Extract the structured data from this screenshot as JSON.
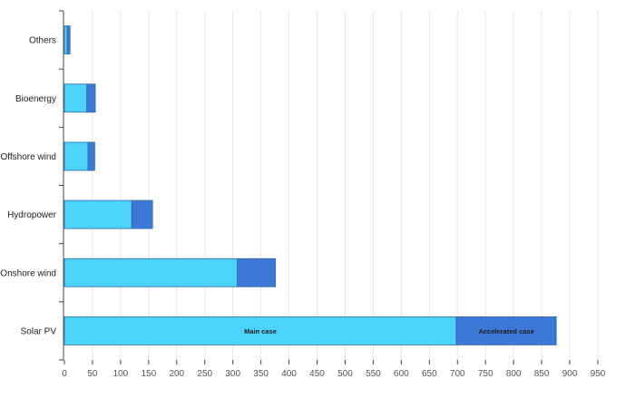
{
  "chart_data": {
    "type": "bar",
    "orientation": "horizontal",
    "stacked": true,
    "categories": [
      "Others",
      "Bioenergy",
      "Offshore wind",
      "Hydropower",
      "Onshore wind",
      "Solar PV"
    ],
    "series": [
      {
        "values": [
          5,
          40,
          42,
          120,
          308,
          698
        ]
      },
      {
        "values": [
          5,
          15,
          12,
          37,
          68,
          178
        ]
      }
    ],
    "segment_labels": {
      "series_index": 0,
      "category": "Solar PV",
      "texts": [
        "Main case",
        "Accelerated case"
      ]
    },
    "xticks": [
      0,
      50,
      100,
      150,
      200,
      250,
      300,
      350,
      400,
      450,
      500,
      550,
      600,
      650,
      700,
      750,
      800,
      850,
      900,
      950
    ],
    "xlim": [
      0,
      950
    ],
    "grid": "vertical",
    "colors": {
      "series": [
        "#4dd2fc",
        "#3e78d6"
      ],
      "outline": "#2e6aa8",
      "grid": "#e6e6e6",
      "axis": "#444444"
    }
  }
}
